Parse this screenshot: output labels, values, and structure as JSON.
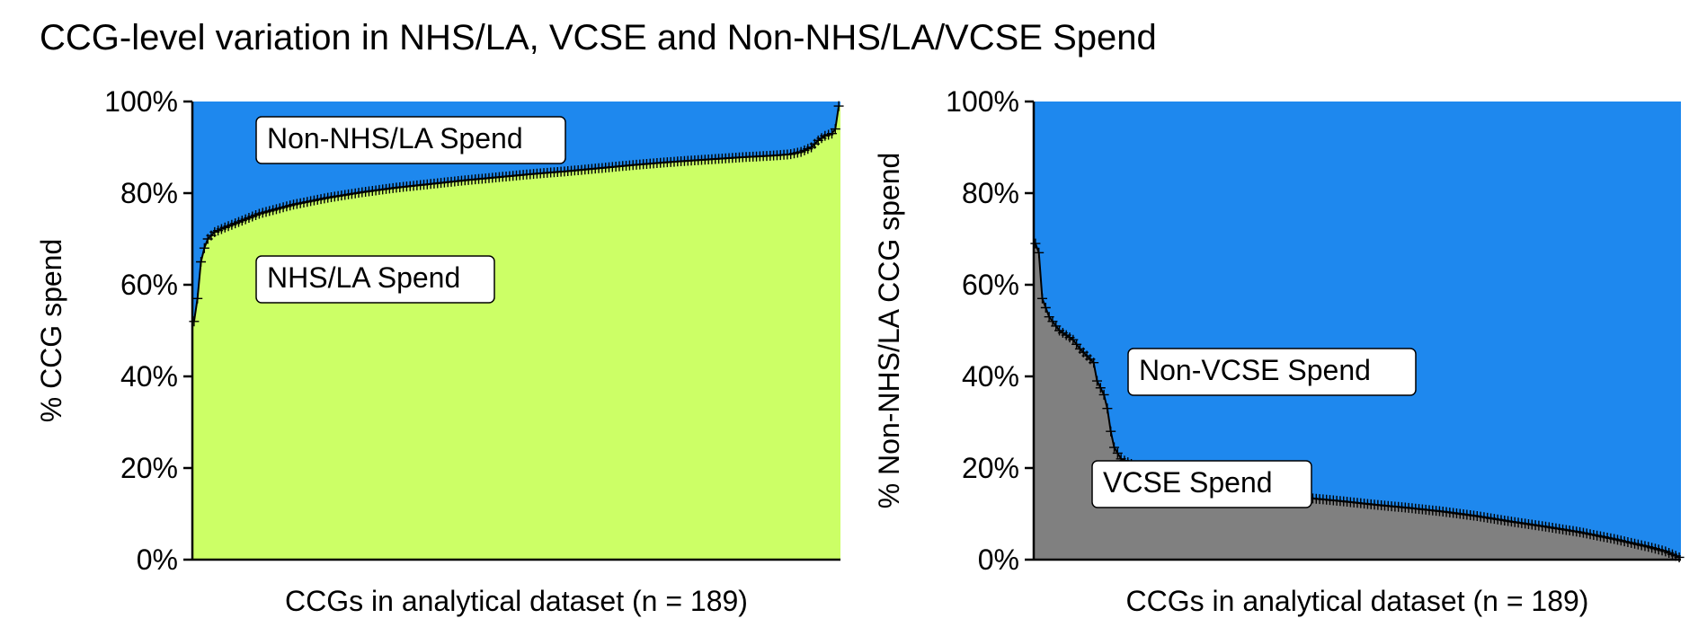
{
  "figure": {
    "title": "CCG-level variation in NHS/LA, VCSE and Non-NHS/LA/VCSE Spend"
  },
  "chart_data": [
    {
      "type": "area",
      "subtype": "stacked-100-percent",
      "xlabel": "CCGs in analytical dataset (n = 189)",
      "ylabel": "% CCG spend",
      "ylim": [
        0,
        100
      ],
      "yticks": [
        "0%",
        "20%",
        "40%",
        "60%",
        "80%",
        "100%"
      ],
      "grid": false,
      "n": 189,
      "sort": "ascending",
      "series": [
        {
          "name": "NHS/LA Spend",
          "color": "#ccff66"
        },
        {
          "name": "Non-NHS/LA Spend",
          "color": "#1e88ee"
        }
      ],
      "boundary_series": "NHS/LA Spend",
      "boundary_points": [
        [
          1,
          52
        ],
        [
          2,
          57
        ],
        [
          3,
          65
        ],
        [
          4,
          68
        ],
        [
          5,
          70
        ],
        [
          7,
          71.5
        ],
        [
          10,
          72.5
        ],
        [
          15,
          74
        ],
        [
          20,
          75.5
        ],
        [
          25,
          76.5
        ],
        [
          30,
          77.5
        ],
        [
          40,
          79
        ],
        [
          50,
          80.2
        ],
        [
          60,
          81.2
        ],
        [
          70,
          82
        ],
        [
          80,
          82.8
        ],
        [
          90,
          83.5
        ],
        [
          100,
          84.2
        ],
        [
          110,
          84.8
        ],
        [
          120,
          85.5
        ],
        [
          130,
          86.2
        ],
        [
          140,
          86.8
        ],
        [
          150,
          87.3
        ],
        [
          160,
          87.8
        ],
        [
          170,
          88.2
        ],
        [
          175,
          88.5
        ],
        [
          178,
          89
        ],
        [
          181,
          90
        ],
        [
          183,
          91.5
        ],
        [
          185,
          92.5
        ],
        [
          187,
          93
        ],
        [
          188,
          94
        ],
        [
          189,
          99
        ]
      ],
      "annotations": [
        {
          "text": "Non-NHS/LA Spend",
          "series": "Non-NHS/LA Spend"
        },
        {
          "text": "NHS/LA Spend",
          "series": "NHS/LA Spend"
        }
      ]
    },
    {
      "type": "area",
      "subtype": "stacked-100-percent",
      "xlabel": "CCGs in analytical dataset (n = 189)",
      "ylabel": "% Non-NHS/LA CCG spend",
      "ylim": [
        0,
        100
      ],
      "yticks": [
        "0%",
        "20%",
        "40%",
        "60%",
        "80%",
        "100%"
      ],
      "grid": false,
      "n": 189,
      "sort": "descending",
      "series": [
        {
          "name": "VCSE Spend",
          "color": "#808080"
        },
        {
          "name": "Non-VCSE Spend",
          "color": "#1e88ee"
        }
      ],
      "boundary_series": "VCSE Spend",
      "boundary_points": [
        [
          1,
          69
        ],
        [
          2,
          67
        ],
        [
          3,
          57
        ],
        [
          4,
          55
        ],
        [
          5,
          53
        ],
        [
          6,
          52
        ],
        [
          8,
          50
        ],
        [
          10,
          49
        ],
        [
          12,
          48
        ],
        [
          14,
          46
        ],
        [
          16,
          44.5
        ],
        [
          18,
          43
        ],
        [
          19,
          39
        ],
        [
          20,
          37.5
        ],
        [
          21,
          36
        ],
        [
          22,
          33
        ],
        [
          23,
          28
        ],
        [
          24,
          24.5
        ],
        [
          26,
          22
        ],
        [
          30,
          20.5
        ],
        [
          35,
          19
        ],
        [
          40,
          18
        ],
        [
          50,
          16.5
        ],
        [
          60,
          15.5
        ],
        [
          70,
          14.5
        ],
        [
          80,
          13.5
        ],
        [
          90,
          12.8
        ],
        [
          100,
          12
        ],
        [
          110,
          11.3
        ],
        [
          120,
          10.5
        ],
        [
          130,
          9.5
        ],
        [
          140,
          8.3
        ],
        [
          150,
          7.2
        ],
        [
          160,
          6
        ],
        [
          170,
          4.5
        ],
        [
          180,
          2.8
        ],
        [
          185,
          1.8
        ],
        [
          189,
          0.5
        ]
      ],
      "annotations": [
        {
          "text": "Non-VCSE Spend",
          "series": "Non-VCSE Spend"
        },
        {
          "text": "VCSE Spend",
          "series": "VCSE Spend"
        }
      ]
    }
  ]
}
